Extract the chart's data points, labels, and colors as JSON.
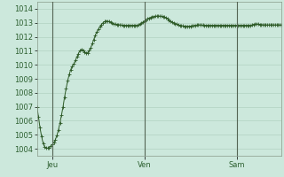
{
  "bg_color": "#cce8dc",
  "plot_bg_color": "#cce8dc",
  "grid_color": "#aaccbb",
  "line_color": "#2d5a27",
  "marker_color": "#2d5a27",
  "ylim": [
    1003.5,
    1014.5
  ],
  "yticks": [
    1004,
    1005,
    1006,
    1007,
    1008,
    1009,
    1010,
    1011,
    1012,
    1013,
    1014
  ],
  "tick_fontsize": 6,
  "axis_label_color": "#2d6030",
  "vline_color": "#556655",
  "xtick_labels": [
    "",
    "Jeu",
    "",
    "Ven",
    "",
    "Sam",
    ""
  ],
  "y_values": [
    1007.0,
    1006.3,
    1005.5,
    1004.9,
    1004.4,
    1004.15,
    1004.05,
    1004.05,
    1004.1,
    1004.2,
    1004.3,
    1004.45,
    1004.65,
    1004.95,
    1005.35,
    1005.85,
    1006.4,
    1007.0,
    1007.7,
    1008.3,
    1008.85,
    1009.3,
    1009.65,
    1009.9,
    1010.05,
    1010.3,
    1010.55,
    1010.8,
    1011.0,
    1011.1,
    1011.05,
    1010.9,
    1010.85,
    1010.85,
    1011.0,
    1011.2,
    1011.5,
    1011.8,
    1012.1,
    1012.35,
    1012.55,
    1012.72,
    1012.88,
    1013.0,
    1013.08,
    1013.12,
    1013.12,
    1013.08,
    1013.02,
    1012.97,
    1012.92,
    1012.9,
    1012.88,
    1012.87,
    1012.85,
    1012.83,
    1012.82,
    1012.82,
    1012.82,
    1012.82,
    1012.82,
    1012.82,
    1012.82,
    1012.82,
    1012.82,
    1012.82,
    1012.85,
    1012.9,
    1012.97,
    1013.05,
    1013.12,
    1013.2,
    1013.28,
    1013.33,
    1013.38,
    1013.42,
    1013.45,
    1013.47,
    1013.48,
    1013.48,
    1013.48,
    1013.46,
    1013.44,
    1013.4,
    1013.35,
    1013.28,
    1013.2,
    1013.12,
    1013.05,
    1013.0,
    1012.95,
    1012.9,
    1012.85,
    1012.82,
    1012.8,
    1012.78,
    1012.76,
    1012.75,
    1012.75,
    1012.75,
    1012.76,
    1012.78,
    1012.8,
    1012.82,
    1012.84,
    1012.85,
    1012.85,
    1012.84,
    1012.83,
    1012.82,
    1012.82,
    1012.82,
    1012.82,
    1012.82,
    1012.82,
    1012.82,
    1012.82,
    1012.82,
    1012.82,
    1012.82,
    1012.82,
    1012.82,
    1012.82,
    1012.82,
    1012.82,
    1012.82,
    1012.82,
    1012.82,
    1012.82,
    1012.82,
    1012.82,
    1012.82,
    1012.82,
    1012.82,
    1012.82,
    1012.82,
    1012.82,
    1012.82,
    1012.82,
    1012.82,
    1012.85,
    1012.88,
    1012.9,
    1012.92,
    1012.9,
    1012.88,
    1012.87,
    1012.86,
    1012.85,
    1012.85,
    1012.85,
    1012.85,
    1012.85,
    1012.85,
    1012.85,
    1012.85,
    1012.85,
    1012.85,
    1012.85,
    1012.85
  ]
}
